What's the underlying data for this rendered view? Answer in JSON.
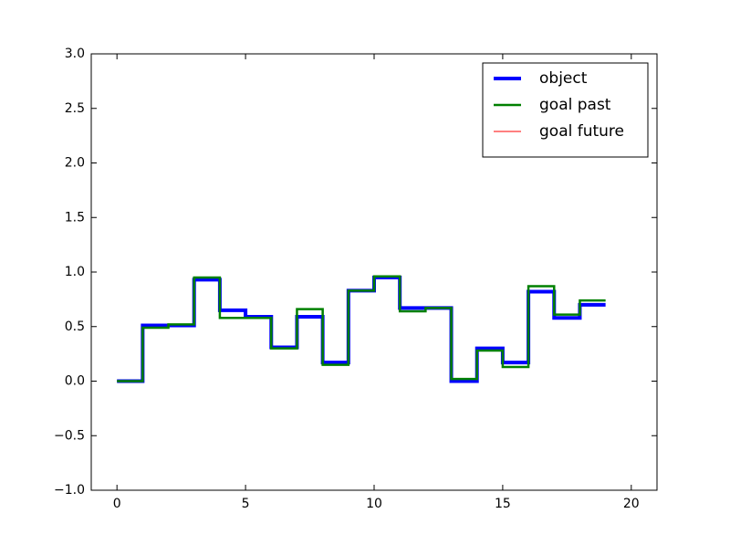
{
  "chart_data": {
    "type": "step",
    "x": [
      0,
      1,
      2,
      3,
      4,
      5,
      6,
      7,
      8,
      9,
      10,
      11,
      12,
      13,
      14,
      15,
      16,
      17,
      18,
      19
    ],
    "series": [
      {
        "name": "object",
        "color": "#0000ff",
        "width": 4,
        "values": [
          0,
          0.51,
          0.51,
          0.93,
          0.65,
          0.59,
          0.31,
          0.59,
          0.17,
          0.83,
          0.95,
          0.67,
          0.67,
          0.0,
          0.3,
          0.17,
          0.82,
          0.58,
          0.7,
          0.7
        ]
      },
      {
        "name": "goal past",
        "color": "#008000",
        "width": 2.5,
        "values": [
          0,
          0.49,
          0.52,
          0.95,
          0.58,
          0.58,
          0.3,
          0.66,
          0.15,
          0.83,
          0.96,
          0.64,
          0.67,
          0.02,
          0.28,
          0.13,
          0.87,
          0.61,
          0.74,
          0.74
        ]
      },
      {
        "name": "goal future",
        "color": "#ff0000",
        "width": 1,
        "values": [
          null,
          null,
          null,
          null,
          null,
          null,
          null,
          null,
          null,
          null,
          null,
          null,
          null,
          null,
          null,
          null,
          null,
          null,
          null,
          null
        ]
      }
    ],
    "xlim": [
      -1,
      21
    ],
    "ylim": [
      -1,
      3
    ],
    "xticks": [
      0,
      5,
      10,
      15,
      20
    ],
    "yticks": [
      {
        "value": -1,
        "label": "−1.0"
      },
      {
        "value": -0.5,
        "label": "−0.5"
      },
      {
        "value": 0,
        "label": "0.0"
      },
      0.5,
      {
        "value": 1,
        "label": "1.0"
      },
      1.5,
      {
        "value": 2,
        "label": "2.0"
      },
      2.5,
      {
        "value": 3,
        "label": "3.0"
      }
    ],
    "legend": "upper right",
    "grid": false
  }
}
